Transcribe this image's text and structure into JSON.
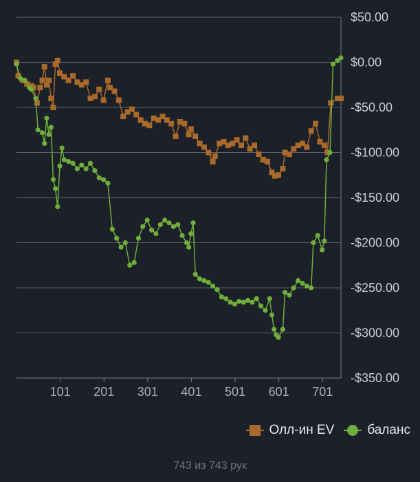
{
  "chart_data": {
    "type": "line",
    "title": "",
    "xlabel": "",
    "ylabel": "",
    "x_ticks": [
      101,
      201,
      301,
      401,
      501,
      601,
      701
    ],
    "x_tick_labels": [
      "101",
      "201",
      "301",
      "401",
      "501",
      "601",
      "701"
    ],
    "xlim": [
      1,
      743
    ],
    "y_ticks": [
      50,
      0,
      -50,
      -100,
      -150,
      -200,
      -250,
      -300,
      -350
    ],
    "y_tick_labels": [
      "$50.00",
      "$0.00",
      "-$50.00",
      "-$100.00",
      "-$150.00",
      "-$200.00",
      "-$250.00",
      "-$300.00",
      "-$350.00"
    ],
    "ylim": [
      -350,
      50
    ],
    "grid": true,
    "legend_position": "bottom-right",
    "series": [
      {
        "name": "Олл-ин EV",
        "color": "#a8692a",
        "marker": "square",
        "points": [
          [
            1,
            0
          ],
          [
            5,
            -15
          ],
          [
            15,
            -20
          ],
          [
            25,
            -24
          ],
          [
            35,
            -26
          ],
          [
            40,
            -28
          ],
          [
            48,
            -45
          ],
          [
            55,
            -28
          ],
          [
            60,
            -20
          ],
          [
            65,
            -5
          ],
          [
            70,
            -25
          ],
          [
            75,
            -20
          ],
          [
            80,
            -40
          ],
          [
            85,
            -50
          ],
          [
            90,
            -2
          ],
          [
            95,
            2
          ],
          [
            100,
            -12
          ],
          [
            110,
            -16
          ],
          [
            120,
            -20
          ],
          [
            130,
            -15
          ],
          [
            140,
            -22
          ],
          [
            150,
            -25
          ],
          [
            160,
            -22
          ],
          [
            170,
            -40
          ],
          [
            180,
            -38
          ],
          [
            190,
            -30
          ],
          [
            200,
            -42
          ],
          [
            210,
            -20
          ],
          [
            215,
            -28
          ],
          [
            225,
            -32
          ],
          [
            235,
            -42
          ],
          [
            245,
            -60
          ],
          [
            255,
            -55
          ],
          [
            265,
            -52
          ],
          [
            275,
            -58
          ],
          [
            285,
            -64
          ],
          [
            295,
            -68
          ],
          [
            305,
            -70
          ],
          [
            315,
            -62
          ],
          [
            325,
            -64
          ],
          [
            335,
            -60
          ],
          [
            345,
            -64
          ],
          [
            355,
            -68
          ],
          [
            365,
            -82
          ],
          [
            375,
            -66
          ],
          [
            385,
            -68
          ],
          [
            395,
            -80
          ],
          [
            400,
            -74
          ],
          [
            410,
            -82
          ],
          [
            420,
            -90
          ],
          [
            430,
            -94
          ],
          [
            440,
            -100
          ],
          [
            450,
            -110
          ],
          [
            455,
            -104
          ],
          [
            465,
            -90
          ],
          [
            475,
            -88
          ],
          [
            485,
            -92
          ],
          [
            495,
            -90
          ],
          [
            505,
            -86
          ],
          [
            515,
            -92
          ],
          [
            525,
            -84
          ],
          [
            535,
            -96
          ],
          [
            545,
            -92
          ],
          [
            555,
            -102
          ],
          [
            565,
            -108
          ],
          [
            575,
            -110
          ],
          [
            585,
            -122
          ],
          [
            592,
            -126
          ],
          [
            600,
            -125
          ],
          [
            610,
            -118
          ],
          [
            615,
            -100
          ],
          [
            625,
            -102
          ],
          [
            635,
            -96
          ],
          [
            645,
            -92
          ],
          [
            655,
            -90
          ],
          [
            665,
            -94
          ],
          [
            675,
            -76
          ],
          [
            685,
            -68
          ],
          [
            695,
            -88
          ],
          [
            705,
            -92
          ],
          [
            712,
            -100
          ],
          [
            720,
            -45
          ],
          [
            735,
            -40
          ],
          [
            743,
            -40
          ]
        ]
      },
      {
        "name": "баланс",
        "color": "#6fae3a",
        "marker": "circle",
        "points": [
          [
            1,
            -2
          ],
          [
            10,
            -18
          ],
          [
            20,
            -20
          ],
          [
            30,
            -28
          ],
          [
            35,
            -30
          ],
          [
            45,
            -40
          ],
          [
            50,
            -75
          ],
          [
            60,
            -78
          ],
          [
            65,
            -90
          ],
          [
            70,
            -62
          ],
          [
            75,
            -80
          ],
          [
            80,
            -72
          ],
          [
            85,
            -130
          ],
          [
            90,
            -140
          ],
          [
            95,
            -160
          ],
          [
            100,
            -115
          ],
          [
            105,
            -95
          ],
          [
            110,
            -108
          ],
          [
            120,
            -110
          ],
          [
            130,
            -112
          ],
          [
            140,
            -118
          ],
          [
            150,
            -114
          ],
          [
            160,
            -118
          ],
          [
            170,
            -112
          ],
          [
            180,
            -120
          ],
          [
            190,
            -128
          ],
          [
            200,
            -130
          ],
          [
            210,
            -134
          ],
          [
            220,
            -185
          ],
          [
            230,
            -195
          ],
          [
            240,
            -205
          ],
          [
            250,
            -200
          ],
          [
            260,
            -225
          ],
          [
            270,
            -222
          ],
          [
            280,
            -195
          ],
          [
            290,
            -182
          ],
          [
            300,
            -175
          ],
          [
            310,
            -186
          ],
          [
            320,
            -190
          ],
          [
            330,
            -180
          ],
          [
            340,
            -175
          ],
          [
            350,
            -178
          ],
          [
            360,
            -182
          ],
          [
            370,
            -180
          ],
          [
            380,
            -192
          ],
          [
            390,
            -200
          ],
          [
            395,
            -205
          ],
          [
            400,
            -190
          ],
          [
            405,
            -178
          ],
          [
            410,
            -235
          ],
          [
            420,
            -240
          ],
          [
            430,
            -242
          ],
          [
            440,
            -244
          ],
          [
            450,
            -248
          ],
          [
            460,
            -252
          ],
          [
            470,
            -260
          ],
          [
            480,
            -262
          ],
          [
            490,
            -266
          ],
          [
            500,
            -268
          ],
          [
            510,
            -265
          ],
          [
            520,
            -266
          ],
          [
            530,
            -264
          ],
          [
            540,
            -266
          ],
          [
            550,
            -262
          ],
          [
            560,
            -270
          ],
          [
            570,
            -275
          ],
          [
            580,
            -262
          ],
          [
            585,
            -280
          ],
          [
            590,
            -296
          ],
          [
            595,
            -302
          ],
          [
            600,
            -305
          ],
          [
            610,
            -296
          ],
          [
            615,
            -255
          ],
          [
            625,
            -258
          ],
          [
            635,
            -250
          ],
          [
            645,
            -242
          ],
          [
            655,
            -245
          ],
          [
            665,
            -248
          ],
          [
            675,
            -250
          ],
          [
            680,
            -200
          ],
          [
            690,
            -192
          ],
          [
            700,
            -208
          ],
          [
            705,
            -198
          ],
          [
            710,
            -108
          ],
          [
            718,
            -100
          ],
          [
            725,
            -2
          ],
          [
            735,
            2
          ],
          [
            743,
            5
          ]
        ]
      }
    ]
  },
  "footer": {
    "hand_count_label": "743 из 743 рук"
  }
}
